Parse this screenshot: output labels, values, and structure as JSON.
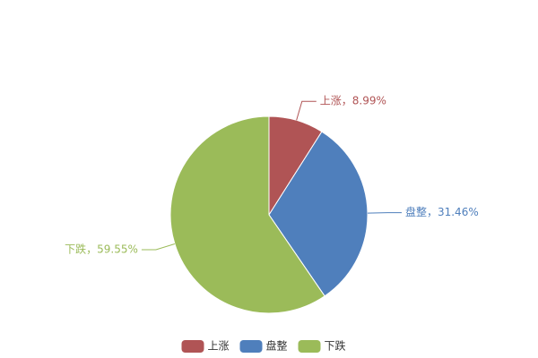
{
  "chart_data": {
    "type": "pie",
    "categories": [
      "上涨",
      "盘整",
      "下跌"
    ],
    "values": [
      8.99,
      31.46,
      59.55
    ],
    "value_labels": [
      "上涨，8.99%",
      "盘整，31.46%",
      "下跌，59.55%"
    ],
    "colors": [
      "#b05455",
      "#4f7fbc",
      "#9bbb59"
    ],
    "legend": "bottom"
  }
}
